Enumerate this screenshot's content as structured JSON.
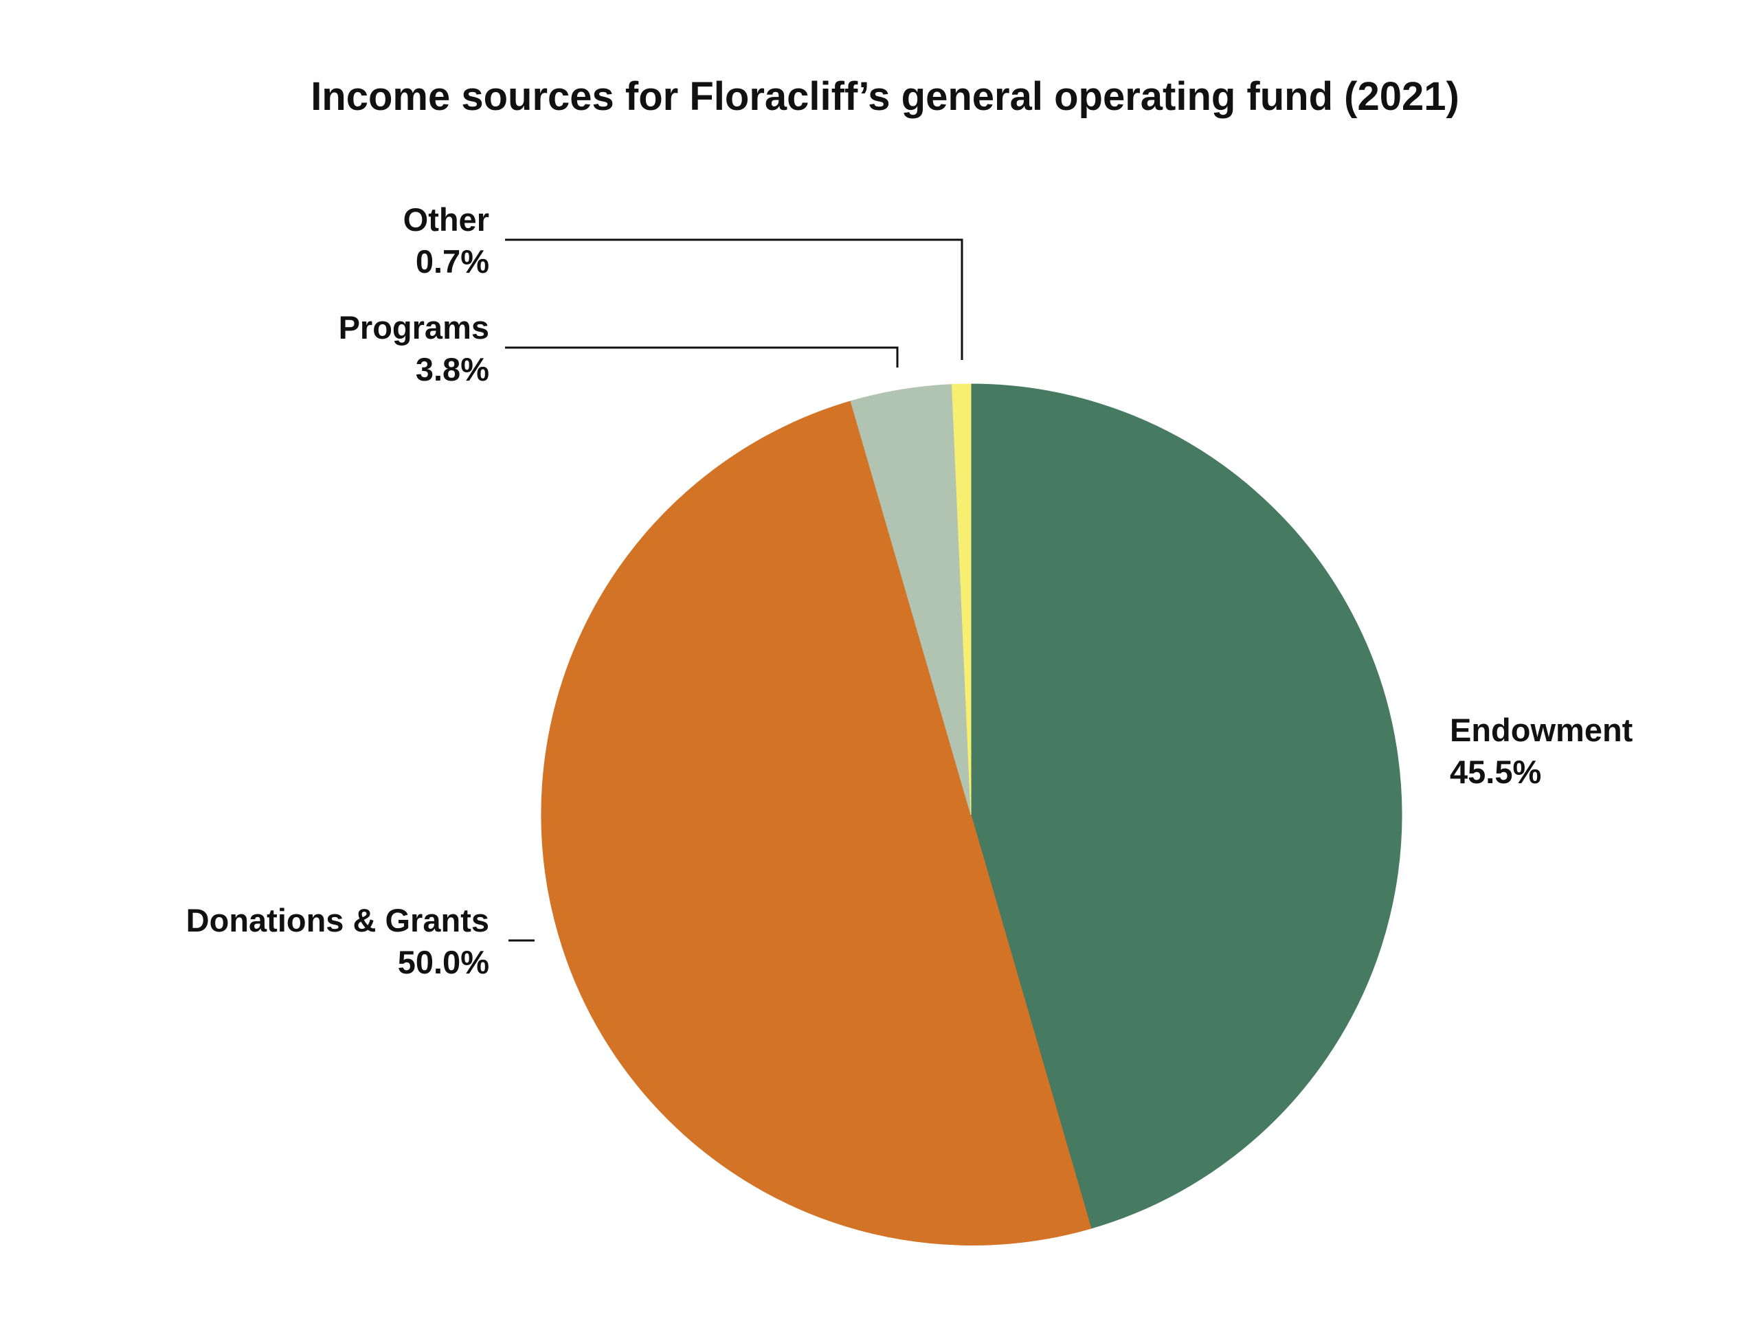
{
  "chart_data": {
    "type": "pie",
    "title": "Income sources for Floracliff’s general operating fund (2021)",
    "slices": [
      {
        "name": "Endowment",
        "value": 45.5,
        "label": "45.5%",
        "color": "#477b61"
      },
      {
        "name": "Donations & Grants",
        "value": 50.0,
        "label": "50.0%",
        "color": "#d37326"
      },
      {
        "name": "Programs",
        "value": 3.8,
        "label": "3.8%",
        "color": "#b0c4b1"
      },
      {
        "name": "Other",
        "value": 0.7,
        "label": "0.7%",
        "color": "#f7ef72"
      }
    ],
    "start_angle": "12 o'clock",
    "direction": "clockwise"
  }
}
